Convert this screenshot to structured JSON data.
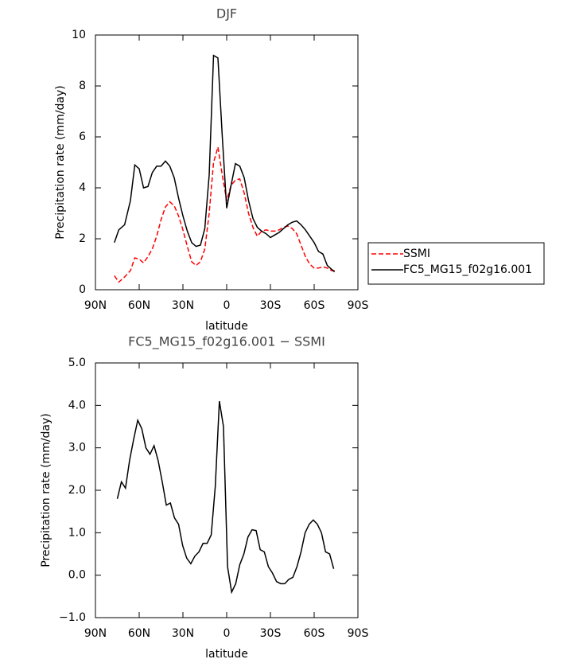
{
  "chart_data": [
    {
      "type": "line",
      "title": "DJF",
      "xlabel": "latitude",
      "ylabel": "Precipitation rate (mm/day)",
      "xlim": [
        90,
        -90
      ],
      "xticks": [
        {
          "value": 90,
          "label": "90N"
        },
        {
          "value": 60,
          "label": "60N"
        },
        {
          "value": 30,
          "label": "30N"
        },
        0,
        {
          "value": -30,
          "label": "30S"
        },
        {
          "value": -60,
          "label": "60S"
        },
        {
          "value": -90,
          "label": "90S"
        }
      ],
      "ylim": [
        0,
        10
      ],
      "yticks": [
        0,
        2,
        4,
        6,
        8,
        10
      ],
      "legend": "right",
      "x": [
        77,
        74,
        70,
        66,
        63,
        60,
        57,
        54,
        51,
        48,
        45,
        42,
        39,
        36,
        33,
        30,
        27,
        24,
        21,
        18,
        15,
        12,
        9,
        6,
        3,
        0,
        -3,
        -6,
        -9,
        -12,
        -15,
        -18,
        -21,
        -24,
        -27,
        -30,
        -33,
        -36,
        -39,
        -42,
        -45,
        -48,
        -51,
        -54,
        -57,
        -60,
        -63,
        -66,
        -69,
        -72,
        -74
      ],
      "series": [
        {
          "name": "SSMI",
          "color": "#ff0000",
          "style": "dashed",
          "values": [
            0.55,
            0.3,
            0.5,
            0.75,
            1.25,
            1.2,
            1.05,
            1.3,
            1.6,
            2.1,
            2.75,
            3.25,
            3.45,
            3.3,
            2.9,
            2.35,
            1.7,
            1.1,
            0.95,
            1.1,
            1.6,
            3.0,
            5.0,
            5.6,
            4.5,
            3.5,
            4.1,
            4.3,
            4.35,
            3.8,
            3.0,
            2.45,
            2.1,
            2.3,
            2.35,
            2.3,
            2.3,
            2.35,
            2.45,
            2.5,
            2.4,
            2.2,
            1.75,
            1.3,
            1.0,
            0.85,
            0.85,
            0.9,
            0.85,
            0.75,
            0.75
          ]
        },
        {
          "name": "FC5_MG15_f02g16.001",
          "color": "#000000",
          "style": "solid",
          "values": [
            1.85,
            2.35,
            2.55,
            3.5,
            4.9,
            4.75,
            4.0,
            4.05,
            4.6,
            4.85,
            4.85,
            5.05,
            4.85,
            4.4,
            3.6,
            2.9,
            2.3,
            1.85,
            1.7,
            1.75,
            2.4,
            4.5,
            9.2,
            9.1,
            6.0,
            3.2,
            4.1,
            4.95,
            4.85,
            4.4,
            3.5,
            2.8,
            2.45,
            2.3,
            2.2,
            2.05,
            2.15,
            2.25,
            2.4,
            2.55,
            2.65,
            2.7,
            2.55,
            2.35,
            2.1,
            1.85,
            1.5,
            1.4,
            0.95,
            0.8,
            0.7
          ]
        }
      ]
    },
    {
      "type": "line",
      "title": "FC5_MG15_f02g16.001 − SSMI",
      "xlabel": "latitude",
      "ylabel": "Precipitation rate (mm/day)",
      "xlim": [
        90,
        -90
      ],
      "xticks": [
        {
          "value": 90,
          "label": "90N"
        },
        {
          "value": 60,
          "label": "60N"
        },
        {
          "value": 30,
          "label": "30N"
        },
        0,
        {
          "value": -30,
          "label": "30S"
        },
        {
          "value": -60,
          "label": "60S"
        },
        {
          "value": -90,
          "label": "90S"
        }
      ],
      "ylim": [
        -1,
        5
      ],
      "yticks": [
        {
          "value": -1,
          "label": "−1.0"
        },
        {
          "value": 0,
          "label": "0.0"
        },
        {
          "value": 1,
          "label": "1.0"
        },
        {
          "value": 2,
          "label": "2.0"
        },
        {
          "value": 3,
          "label": "3.0"
        },
        {
          "value": 4,
          "label": "4.0"
        },
        {
          "value": 5,
          "label": "5.0"
        }
      ],
      "x": [
        75,
        72.2,
        69.4,
        66.6,
        63.8,
        61,
        58.2,
        55.4,
        52.6,
        49.8,
        47,
        44.2,
        41.4,
        38.6,
        35.8,
        33,
        30.2,
        27.4,
        24.6,
        21.8,
        19,
        16.2,
        13.4,
        10.6,
        7.8,
        5,
        2.2,
        -0.6,
        -3.4,
        -6.2,
        -9,
        -11.8,
        -14.6,
        -17.4,
        -20.2,
        -23,
        -25.8,
        -28.6,
        -31.4,
        -34.2,
        -37,
        -39.8,
        -42.6,
        -45.4,
        -48.2,
        -51,
        -53.8,
        -56.6,
        -59.4,
        -62.2,
        -65,
        -67.8,
        -70.6,
        -73.4
      ],
      "series": [
        {
          "color": "#000000",
          "style": "solid",
          "values": [
            1.8,
            2.2,
            2.05,
            2.7,
            3.2,
            3.65,
            3.45,
            3.0,
            2.85,
            3.05,
            2.7,
            2.2,
            1.65,
            1.7,
            1.35,
            1.2,
            0.7,
            0.4,
            0.27,
            0.45,
            0.55,
            0.75,
            0.75,
            0.95,
            2.1,
            4.1,
            3.5,
            0.2,
            -0.4,
            -0.2,
            0.25,
            0.5,
            0.9,
            1.07,
            1.05,
            0.6,
            0.55,
            0.2,
            0.05,
            -0.15,
            -0.2,
            -0.2,
            -0.1,
            -0.05,
            0.2,
            0.55,
            1.0,
            1.2,
            1.3,
            1.2,
            1.0,
            0.55,
            0.5,
            0.15
          ]
        }
      ]
    }
  ]
}
